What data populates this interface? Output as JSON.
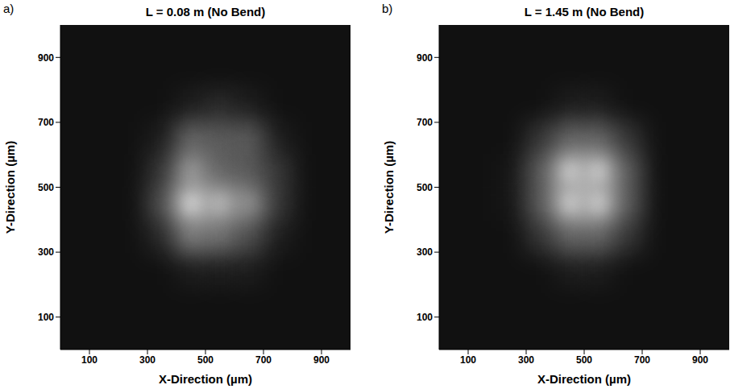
{
  "chart_data": [
    {
      "type": "heatmap",
      "panel_label": "a)",
      "title": "L = 0.08 m (No Bend)",
      "x_label": "X-Direction (µm)",
      "y_label": "Y-Direction (µm)",
      "xlim": [
        0,
        1000
      ],
      "ylim": [
        0,
        1000
      ],
      "xticks": [
        100,
        300,
        500,
        700,
        900
      ],
      "yticks": [
        100,
        300,
        500,
        700,
        900
      ],
      "color": "#ffffff",
      "x": [
        50,
        150,
        250,
        350,
        450,
        550,
        650,
        750,
        850,
        950
      ],
      "y": [
        50,
        150,
        250,
        350,
        450,
        550,
        650,
        750,
        850,
        950
      ],
      "cells": [
        [
          0,
          0,
          0,
          0,
          0,
          0,
          0,
          0,
          0,
          0
        ],
        [
          0,
          0,
          0,
          0,
          0,
          0,
          0,
          0,
          0,
          0
        ],
        [
          0,
          0,
          0,
          0,
          0.05,
          0.05,
          0.05,
          0,
          0,
          0
        ],
        [
          0,
          0,
          0,
          0.1,
          0.45,
          0.4,
          0.25,
          0.05,
          0,
          0
        ],
        [
          0,
          0,
          0,
          0.25,
          0.9,
          0.75,
          0.55,
          0.15,
          0,
          0
        ],
        [
          0,
          0,
          0,
          0.15,
          0.6,
          0.35,
          0.3,
          0.15,
          0,
          0
        ],
        [
          0,
          0,
          0,
          0.05,
          0.35,
          0.3,
          0.3,
          0.05,
          0,
          0
        ],
        [
          0,
          0,
          0,
          0,
          0.05,
          0.1,
          0.05,
          0,
          0,
          0
        ],
        [
          0,
          0,
          0,
          0,
          0,
          0,
          0,
          0,
          0,
          0
        ],
        [
          0,
          0,
          0,
          0,
          0,
          0,
          0,
          0,
          0,
          0
        ]
      ]
    },
    {
      "type": "heatmap",
      "panel_label": "b)",
      "title": "L = 1.45 m (No Bend)",
      "x_label": "X-Direction (µm)",
      "y_label": "Y-Direction (µm)",
      "xlim": [
        0,
        1000
      ],
      "ylim": [
        0,
        1000
      ],
      "xticks": [
        100,
        300,
        500,
        700,
        900
      ],
      "yticks": [
        100,
        300,
        500,
        700,
        900
      ],
      "color": "#ffffff",
      "x": [
        50,
        150,
        250,
        350,
        450,
        550,
        650,
        750,
        850,
        950
      ],
      "y": [
        50,
        150,
        250,
        350,
        450,
        550,
        650,
        750,
        850,
        950
      ],
      "cells": [
        [
          0,
          0,
          0,
          0,
          0,
          0,
          0,
          0,
          0,
          0
        ],
        [
          0,
          0,
          0,
          0,
          0,
          0,
          0,
          0,
          0,
          0
        ],
        [
          0,
          0,
          0,
          0,
          0.05,
          0.05,
          0,
          0,
          0,
          0
        ],
        [
          0,
          0,
          0,
          0.15,
          0.35,
          0.35,
          0.15,
          0,
          0,
          0
        ],
        [
          0,
          0,
          0.02,
          0.3,
          0.85,
          0.85,
          0.3,
          0,
          0,
          0
        ],
        [
          0,
          0,
          0.02,
          0.3,
          0.85,
          0.85,
          0.3,
          0,
          0,
          0
        ],
        [
          0,
          0,
          0,
          0.15,
          0.35,
          0.35,
          0.15,
          0,
          0,
          0
        ],
        [
          0,
          0,
          0,
          0,
          0.05,
          0.05,
          0,
          0,
          0,
          0
        ],
        [
          0,
          0,
          0,
          0,
          0,
          0,
          0,
          0,
          0,
          0
        ],
        [
          0,
          0,
          0,
          0,
          0,
          0,
          0,
          0,
          0,
          0
        ]
      ]
    }
  ]
}
